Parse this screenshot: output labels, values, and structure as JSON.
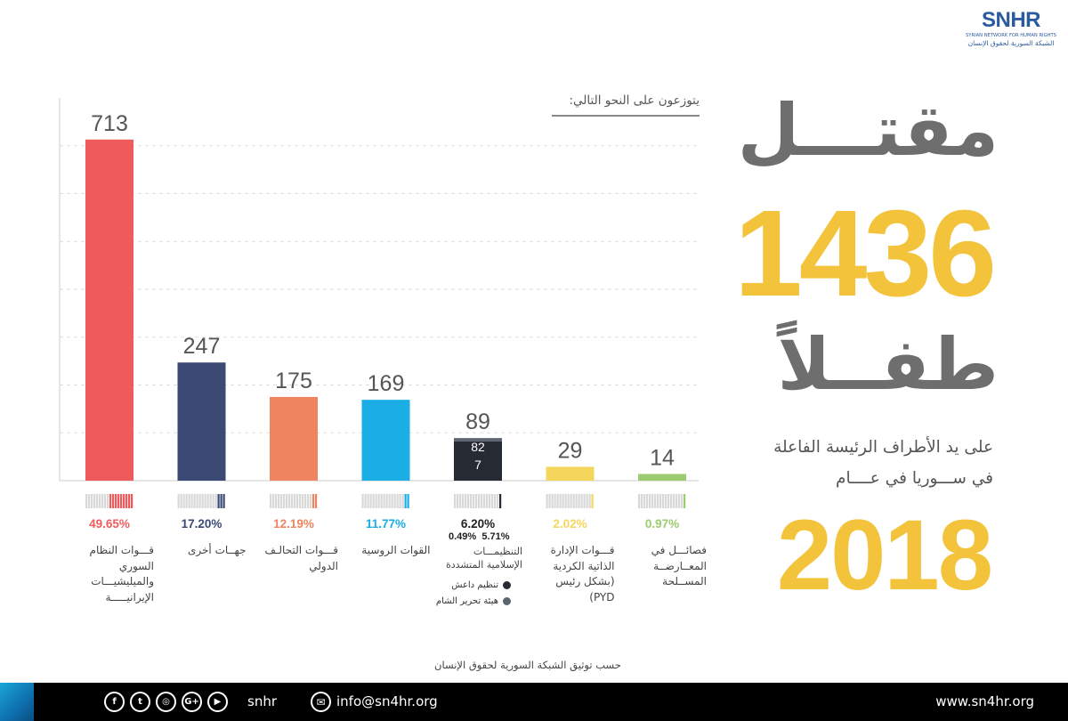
{
  "logo": {
    "mark": "SNHR",
    "subtitle_en": "SYRIAN NETWORK FOR HUMAN RIGHTS",
    "subtitle_ar": "الشبكة السورية لحقوق الإنسان"
  },
  "headline": {
    "killed": "مقتـــل",
    "number": "1436",
    "child": "طفــلاً",
    "line1": "على يد الأطراف الرئيسة الفاعلة",
    "line2": "في ســـوريا في عــــام",
    "year": "2018"
  },
  "subtitle": "يتوزعون على النحو التالي:",
  "source": "حسب توثيق الشبكة السورية لحقوق الإنسان",
  "chart_data": {
    "type": "bar",
    "title": "يتوزعون على النحو التالي:",
    "ylim": [
      0,
      800
    ],
    "grid": true,
    "categories": [
      "قـــوات النظام السوري والميليشيـــات الإيرانيـــــة",
      "جهــات أخرى",
      "قـــوات التحالـف الدولي",
      "القوات الروسية",
      "التنظيمـــات الإسلامية المتشددة",
      "قـــوات الإدارة الذاتية الكردية (بشكل رئيس PYD)",
      "فصائـــل في المعــارضــة المســلحة"
    ],
    "values": [
      713,
      247,
      175,
      169,
      89,
      29,
      14
    ],
    "percentages": [
      "49.65%",
      "17.20%",
      "12.19%",
      "11.77%",
      "6.20%",
      "2.02%",
      "0.97%"
    ],
    "colors": [
      "#ef5a5d",
      "#3a4a75",
      "#ee8460",
      "#1aaee4",
      "#262a33",
      "#f5d65c",
      "#9ccc6f"
    ],
    "stacked_breakdown": {
      "category_index": 4,
      "segments": [
        {
          "name": "تنظيم داعش",
          "value": 82,
          "percent": "5.71%",
          "color": "#262a33"
        },
        {
          "name": "هيئة تحرير الشام",
          "value": 7,
          "percent": "0.49%",
          "color": "#5b6470"
        }
      ]
    }
  },
  "footer": {
    "handle": "snhr",
    "email": "info@sn4hr.org",
    "website": "www.sn4hr.org",
    "social_glyphs": [
      "f",
      "t",
      "◎",
      "G+",
      "▶"
    ],
    "mail_glyph": "✉"
  }
}
